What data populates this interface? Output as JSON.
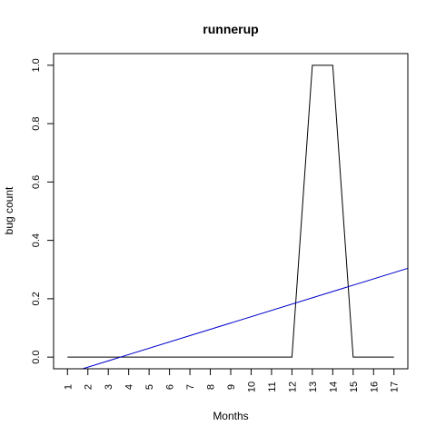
{
  "chart_data": {
    "type": "line",
    "title": "runnerup",
    "xlabel": "Months",
    "ylabel": "bug count",
    "x": [
      1,
      2,
      3,
      4,
      5,
      6,
      7,
      8,
      9,
      10,
      11,
      12,
      13,
      14,
      15,
      16,
      17
    ],
    "x_tick_labels": [
      "1",
      "2",
      "3",
      "4",
      "5",
      "6",
      "7",
      "8",
      "9",
      "10",
      "11",
      "12",
      "13",
      "14",
      "15",
      "16",
      "17"
    ],
    "y_ticks": [
      0.0,
      0.2,
      0.4,
      0.6,
      0.8,
      1.0
    ],
    "y_tick_labels": [
      "0.0",
      "0.2",
      "0.4",
      "0.6",
      "0.8",
      "1.0"
    ],
    "xlim": [
      0.32,
      17.68
    ],
    "ylim": [
      -0.04,
      1.04
    ],
    "grid": false,
    "series": [
      {
        "type": "line",
        "color": "#000000",
        "values": [
          0,
          0,
          0,
          0,
          0,
          0,
          0,
          0,
          0,
          0,
          0,
          0,
          1,
          1,
          0,
          0,
          0
        ]
      }
    ],
    "trend_line": {
      "color": "#0000cc",
      "intercept": -0.0776,
      "slope": 0.0216
    }
  }
}
